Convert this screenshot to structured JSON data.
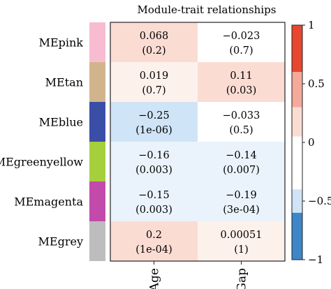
{
  "chart_data": {
    "type": "heatmap",
    "title": "Module-trait relationships",
    "columns": [
      "Age",
      "Gap"
    ],
    "rows": [
      {
        "label": "MEpink",
        "color": "#f8bcd0",
        "cells": [
          {
            "value": 0.068,
            "text": "0.068",
            "p": "(0.2)"
          },
          {
            "value": -0.023,
            "text": "−0.023",
            "p": "(0.7)"
          }
        ]
      },
      {
        "label": "MEtan",
        "color": "#d2b48c",
        "cells": [
          {
            "value": 0.019,
            "text": "0.019",
            "p": "(0.7)"
          },
          {
            "value": 0.11,
            "text": "0.11",
            "p": "(0.03)"
          }
        ]
      },
      {
        "label": "MEblue",
        "color": "#3a4ea8",
        "cells": [
          {
            "value": -0.25,
            "text": "−0.25",
            "p": "(1e-06)"
          },
          {
            "value": -0.033,
            "text": "−0.033",
            "p": "(0.5)"
          }
        ]
      },
      {
        "label": "MEgreenyellow",
        "color": "#a6cf3c",
        "cells": [
          {
            "value": -0.16,
            "text": "−0.16",
            "p": "(0.003)"
          },
          {
            "value": -0.14,
            "text": "−0.14",
            "p": "(0.007)"
          }
        ]
      },
      {
        "label": "MEmagenta",
        "color": "#c24aaa",
        "cells": [
          {
            "value": -0.15,
            "text": "−0.15",
            "p": "(0.003)"
          },
          {
            "value": -0.19,
            "text": "−0.19",
            "p": "(3e-04)"
          }
        ]
      },
      {
        "label": "MEgrey",
        "color": "#bdbdbd",
        "cells": [
          {
            "value": 0.2,
            "text": "0.2",
            "p": "(1e-04)"
          },
          {
            "value": 0.00051,
            "text": "0.00051",
            "p": "(1)"
          }
        ]
      }
    ],
    "colorbar": {
      "range": [
        -1,
        1
      ],
      "ticks": [
        {
          "value": 1,
          "label": "1"
        },
        {
          "value": 0.5,
          "label": "0.5"
        },
        {
          "value": 0,
          "label": "0"
        },
        {
          "value": -0.5,
          "label": "−0.5"
        },
        {
          "value": -1,
          "label": "−1"
        }
      ],
      "colors": {
        "strong_pos": "#e8472f",
        "mid_pos": "#f4a99a",
        "weak_pos": "#fbdcd3",
        "faint_pos": "#fdf1ec",
        "neutral": "#ffffff",
        "faint_neg": "#eaf3fb",
        "weak_neg": "#cfe4f6",
        "mid_neg": "#a9ccec",
        "strong_neg": "#3e86c8"
      }
    }
  }
}
